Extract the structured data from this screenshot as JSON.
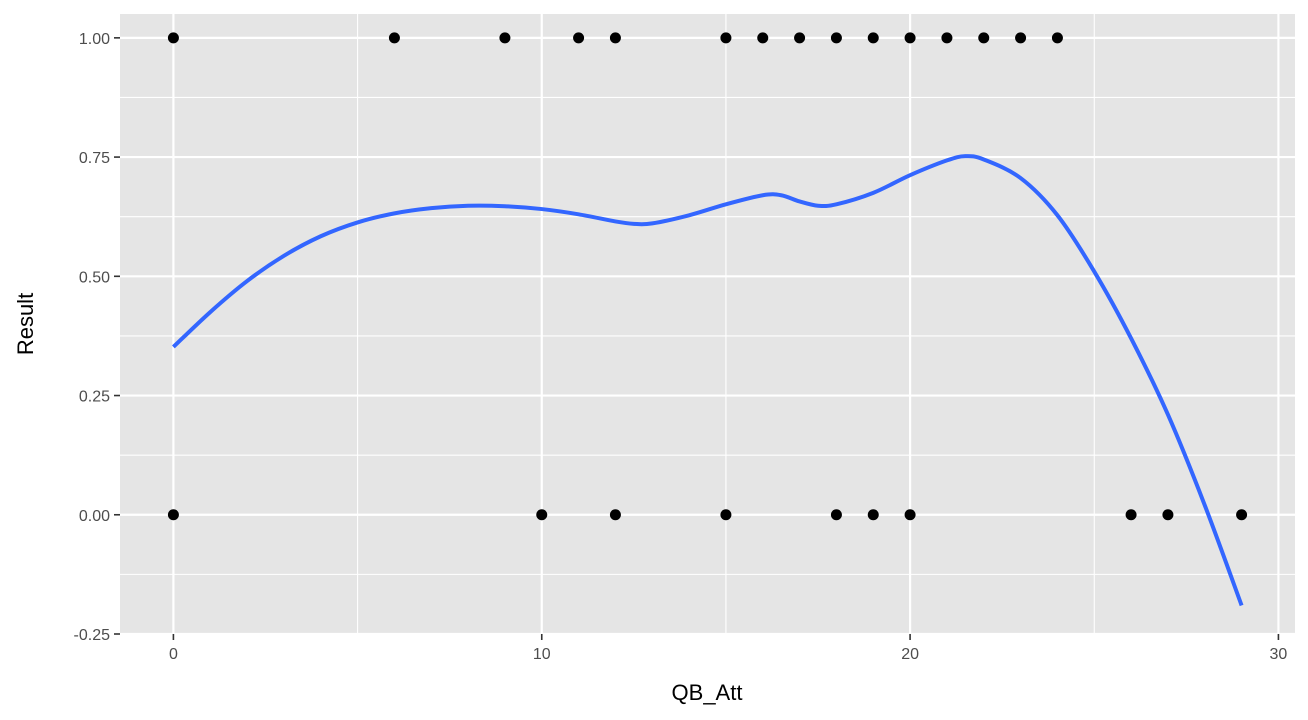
{
  "chart_data": {
    "type": "scatter",
    "xlabel": "QB_Att",
    "ylabel": "Result",
    "xlim": [
      -1.45,
      30.45
    ],
    "ylim": [
      -0.25,
      1.05
    ],
    "x_ticks": [
      0,
      10,
      20,
      30
    ],
    "x_tick_labels": [
      "0",
      "10",
      "20",
      "30"
    ],
    "y_ticks": [
      -0.25,
      0.0,
      0.25,
      0.5,
      0.75,
      1.0
    ],
    "y_tick_labels": [
      "-0.25",
      "0.00",
      "0.25",
      "0.50",
      "0.75",
      "1.00"
    ],
    "grid": true,
    "panel_color": "#e5e5e5",
    "point_color": "#000000",
    "smooth_color": "#3366ff",
    "points": [
      {
        "x": 0,
        "y": 1
      },
      {
        "x": 6,
        "y": 1
      },
      {
        "x": 9,
        "y": 1
      },
      {
        "x": 11,
        "y": 1
      },
      {
        "x": 12,
        "y": 1
      },
      {
        "x": 15,
        "y": 1
      },
      {
        "x": 16,
        "y": 1
      },
      {
        "x": 17,
        "y": 1
      },
      {
        "x": 18,
        "y": 1
      },
      {
        "x": 19,
        "y": 1
      },
      {
        "x": 20,
        "y": 1
      },
      {
        "x": 21,
        "y": 1
      },
      {
        "x": 22,
        "y": 1
      },
      {
        "x": 23,
        "y": 1
      },
      {
        "x": 24,
        "y": 1
      },
      {
        "x": 0,
        "y": 0
      },
      {
        "x": 10,
        "y": 0
      },
      {
        "x": 12,
        "y": 0
      },
      {
        "x": 15,
        "y": 0
      },
      {
        "x": 18,
        "y": 0
      },
      {
        "x": 19,
        "y": 0
      },
      {
        "x": 20,
        "y": 0
      },
      {
        "x": 26,
        "y": 0
      },
      {
        "x": 27,
        "y": 0
      },
      {
        "x": 29,
        "y": 0
      }
    ],
    "smooth_line": [
      {
        "x": 0,
        "y": 0.352
      },
      {
        "x": 1,
        "y": 0.425
      },
      {
        "x": 2,
        "y": 0.49
      },
      {
        "x": 3,
        "y": 0.543
      },
      {
        "x": 4,
        "y": 0.584
      },
      {
        "x": 5,
        "y": 0.613
      },
      {
        "x": 6,
        "y": 0.632
      },
      {
        "x": 7,
        "y": 0.643
      },
      {
        "x": 8,
        "y": 0.648
      },
      {
        "x": 9,
        "y": 0.647
      },
      {
        "x": 10,
        "y": 0.641
      },
      {
        "x": 11,
        "y": 0.63
      },
      {
        "x": 12,
        "y": 0.615
      },
      {
        "x": 12.5,
        "y": 0.61
      },
      {
        "x": 13,
        "y": 0.611
      },
      {
        "x": 14,
        "y": 0.628
      },
      {
        "x": 15,
        "y": 0.651
      },
      {
        "x": 16,
        "y": 0.67
      },
      {
        "x": 16.5,
        "y": 0.67
      },
      {
        "x": 17,
        "y": 0.657
      },
      {
        "x": 17.5,
        "y": 0.648
      },
      {
        "x": 18,
        "y": 0.651
      },
      {
        "x": 19,
        "y": 0.675
      },
      {
        "x": 20,
        "y": 0.712
      },
      {
        "x": 21,
        "y": 0.743
      },
      {
        "x": 21.5,
        "y": 0.752
      },
      {
        "x": 22,
        "y": 0.745
      },
      {
        "x": 23,
        "y": 0.706
      },
      {
        "x": 24,
        "y": 0.628
      },
      {
        "x": 25,
        "y": 0.51
      },
      {
        "x": 26,
        "y": 0.37
      },
      {
        "x": 27,
        "y": 0.21
      },
      {
        "x": 28,
        "y": 0.02
      },
      {
        "x": 29,
        "y": -0.19
      }
    ]
  }
}
